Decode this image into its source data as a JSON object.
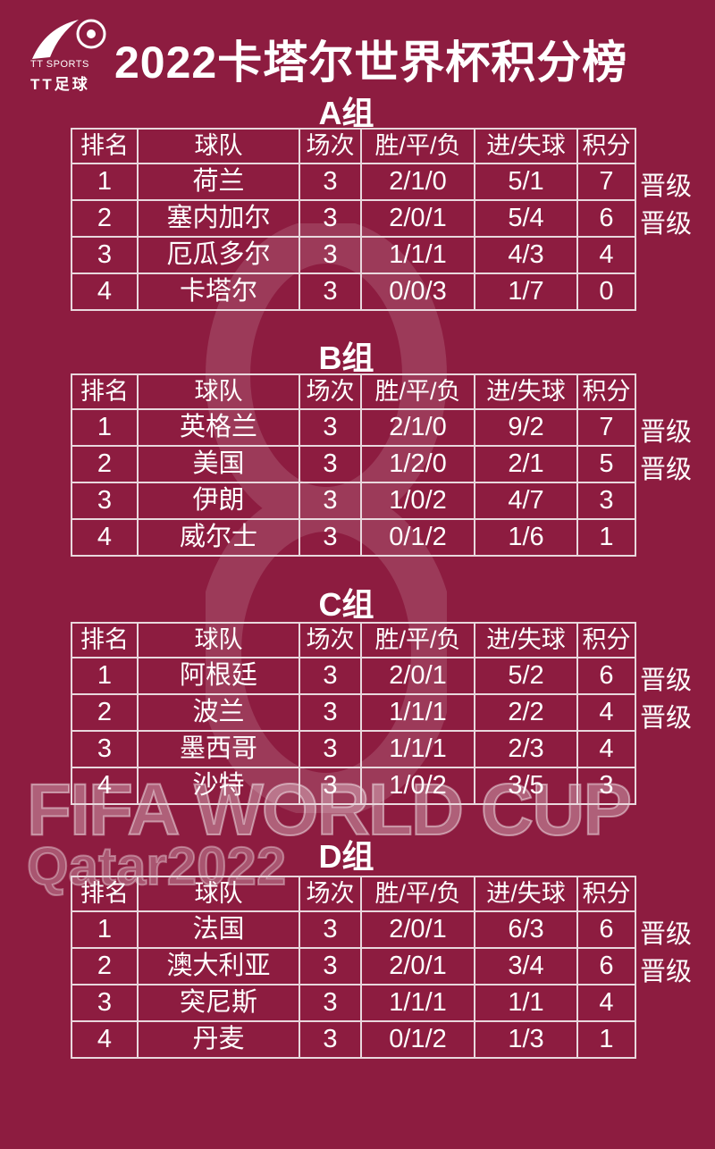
{
  "logo": {
    "en": "TT SPORTS",
    "cn": "TT足球"
  },
  "title": "2022卡塔尔世界杯积分榜",
  "watermark": {
    "line1": "FIFA WORLD CUP",
    "line2": "Qatar2022"
  },
  "columns": [
    "排名",
    "球队",
    "场次",
    "胜/平/负",
    "进/失球",
    "积分"
  ],
  "qualified_label": "晋级",
  "colors": {
    "background": "#8d1c40",
    "text": "#ffffff"
  },
  "groups": [
    {
      "name": "A组",
      "rows": [
        {
          "rank": "1",
          "team": "荷兰",
          "played": "3",
          "wdl": "2/1/0",
          "goals": "5/1",
          "points": "7",
          "status": "晋级"
        },
        {
          "rank": "2",
          "team": "塞内加尔",
          "played": "3",
          "wdl": "2/0/1",
          "goals": "5/4",
          "points": "6",
          "status": "晋级"
        },
        {
          "rank": "3",
          "team": "厄瓜多尔",
          "played": "3",
          "wdl": "1/1/1",
          "goals": "4/3",
          "points": "4",
          "status": ""
        },
        {
          "rank": "4",
          "team": "卡塔尔",
          "played": "3",
          "wdl": "0/0/3",
          "goals": "1/7",
          "points": "0",
          "status": ""
        }
      ]
    },
    {
      "name": "B组",
      "rows": [
        {
          "rank": "1",
          "team": "英格兰",
          "played": "3",
          "wdl": "2/1/0",
          "goals": "9/2",
          "points": "7",
          "status": "晋级"
        },
        {
          "rank": "2",
          "team": "美国",
          "played": "3",
          "wdl": "1/2/0",
          "goals": "2/1",
          "points": "5",
          "status": "晋级"
        },
        {
          "rank": "3",
          "team": "伊朗",
          "played": "3",
          "wdl": "1/0/2",
          "goals": "4/7",
          "points": "3",
          "status": ""
        },
        {
          "rank": "4",
          "team": "威尔士",
          "played": "3",
          "wdl": "0/1/2",
          "goals": "1/6",
          "points": "1",
          "status": ""
        }
      ]
    },
    {
      "name": "C组",
      "rows": [
        {
          "rank": "1",
          "team": "阿根廷",
          "played": "3",
          "wdl": "2/0/1",
          "goals": "5/2",
          "points": "6",
          "status": "晋级"
        },
        {
          "rank": "2",
          "team": "波兰",
          "played": "3",
          "wdl": "1/1/1",
          "goals": "2/2",
          "points": "4",
          "status": "晋级"
        },
        {
          "rank": "3",
          "team": "墨西哥",
          "played": "3",
          "wdl": "1/1/1",
          "goals": "2/3",
          "points": "4",
          "status": ""
        },
        {
          "rank": "4",
          "team": "沙特",
          "played": "3",
          "wdl": "1/0/2",
          "goals": "3/5",
          "points": "3",
          "status": ""
        }
      ]
    },
    {
      "name": "D组",
      "rows": [
        {
          "rank": "1",
          "team": "法国",
          "played": "3",
          "wdl": "2/0/1",
          "goals": "6/3",
          "points": "6",
          "status": "晋级"
        },
        {
          "rank": "2",
          "team": "澳大利亚",
          "played": "3",
          "wdl": "2/0/1",
          "goals": "3/4",
          "points": "6",
          "status": "晋级"
        },
        {
          "rank": "3",
          "team": "突尼斯",
          "played": "3",
          "wdl": "1/1/1",
          "goals": "1/1",
          "points": "4",
          "status": ""
        },
        {
          "rank": "4",
          "team": "丹麦",
          "played": "3",
          "wdl": "0/1/2",
          "goals": "1/3",
          "points": "1",
          "status": ""
        }
      ]
    }
  ]
}
